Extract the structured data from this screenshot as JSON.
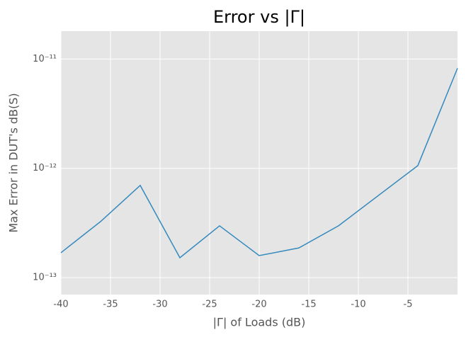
{
  "chart_data": {
    "type": "line",
    "title": "Error vs |Γ|",
    "x_label": "|Γ| of Loads (dB)",
    "y_label": "Max Error in DUT's dB(S)",
    "x": [
      -40,
      -36,
      -32,
      -28,
      -24,
      -20,
      -16,
      -12,
      -4,
      0
    ],
    "series": [
      {
        "name": "Max Error",
        "color": "#348abd",
        "values": [
          1.69e-13,
          3.26e-13,
          6.98e-13,
          1.52e-13,
          2.98e-13,
          1.59e-13,
          1.87e-13,
          2.98e-13,
          1.06e-12,
          8.24e-12
        ]
      }
    ],
    "xlim": [
      -40,
      0
    ],
    "xticks": [
      -40,
      -35,
      -30,
      -25,
      -20,
      -15,
      -10,
      -5
    ],
    "ylim": [
      7e-14,
      1.8e-11
    ],
    "y_scale": "log",
    "yticks": [
      {
        "value": 1e-13,
        "label": "10⁻¹³"
      },
      {
        "value": 1e-12,
        "label": "10⁻¹²"
      },
      {
        "value": 1e-11,
        "label": "10⁻¹¹"
      }
    ],
    "grid": true
  }
}
